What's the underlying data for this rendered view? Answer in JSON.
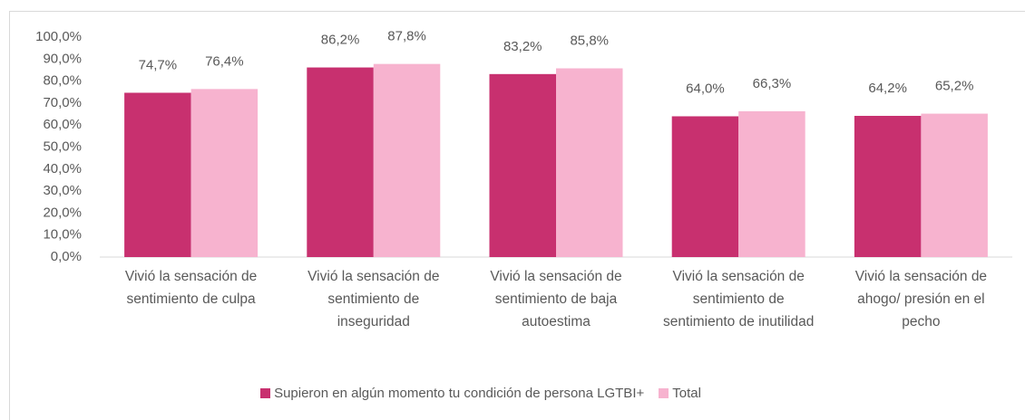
{
  "chart_data": {
    "type": "bar",
    "categories": [
      "Vivió la sensación de sentimiento de culpa",
      "Vivió la sensación de sentimiento de inseguridad",
      "Vivió la sensación de sentimiento de baja autoestima",
      "Vivió la sensación de sentimiento de sentimiento de inutilidad",
      "Vivió la sensación de ahogo/ presión en el pecho"
    ],
    "series": [
      {
        "name": "Supieron en algún momento tu condición de persona LGTBI+",
        "color": "#c8306f",
        "values": [
          74.7,
          86.2,
          83.2,
          64.0,
          64.2
        ],
        "value_labels": [
          "74,7%",
          "86,2%",
          "83,2%",
          "64,0%",
          "64,2%"
        ]
      },
      {
        "name": "Total",
        "color": "#f7b3cf",
        "values": [
          76.4,
          87.8,
          85.8,
          66.3,
          65.2
        ],
        "value_labels": [
          "76,4%",
          "87,8%",
          "85,8%",
          "66,3%",
          "65,2%"
        ]
      }
    ],
    "ylim": [
      0,
      100
    ],
    "yticks": [
      {
        "value": 0,
        "label": "0,0%"
      },
      {
        "value": 10,
        "label": "10,0%"
      },
      {
        "value": 20,
        "label": "20,0%"
      },
      {
        "value": 30,
        "label": "30,0%"
      },
      {
        "value": 40,
        "label": "40,0%"
      },
      {
        "value": 50,
        "label": "50,0%"
      },
      {
        "value": 60,
        "label": "60,0%"
      },
      {
        "value": 70,
        "label": "70,0%"
      },
      {
        "value": 80,
        "label": "80,0%"
      },
      {
        "value": 90,
        "label": "90,0%"
      },
      {
        "value": 100,
        "label": "100,0%"
      }
    ],
    "grid": false,
    "legend": "bottom"
  }
}
